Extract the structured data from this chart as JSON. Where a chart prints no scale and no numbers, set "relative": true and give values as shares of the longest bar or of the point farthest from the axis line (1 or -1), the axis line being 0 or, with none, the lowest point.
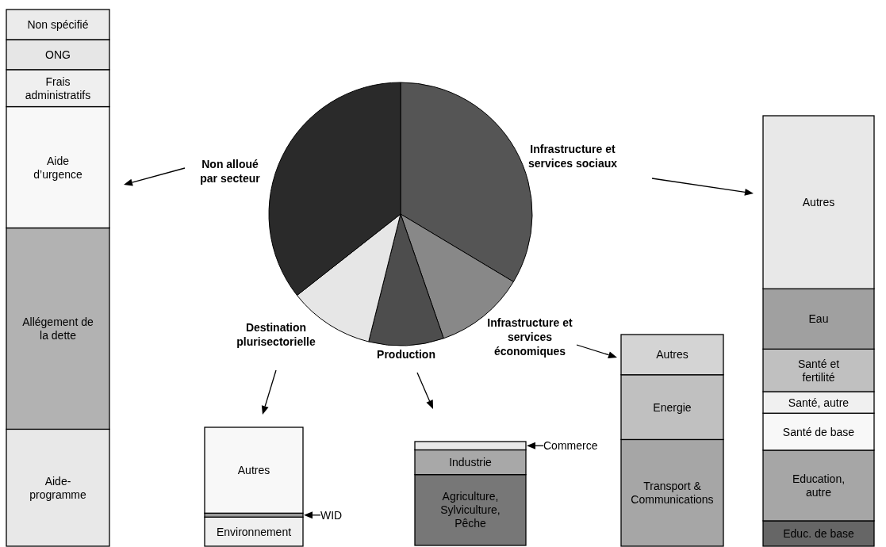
{
  "chart_data": [
    {
      "type": "pie",
      "categories": [
        "Infrastructure et services sociaux",
        "Infrastructure et services économiques",
        "Production",
        "Destination plurisectorielle",
        "Non alloué par secteur"
      ],
      "values": [
        33.6,
        11.1,
        9.2,
        10.5,
        35.6
      ],
      "colors": [
        "#555555",
        "#888888",
        "#4d4d4d",
        "#e6e6e6",
        "#2a2a2a"
      ]
    },
    {
      "type": "bar",
      "stacked": true,
      "relative": true,
      "categories": [
        null
      ],
      "series": [
        {
          "name": "Educ. de base",
          "color": "#666666",
          "values": [
            0.059
          ]
        },
        {
          "name": "Education, autre",
          "color": "#a6a6a6",
          "values": [
            0.164
          ]
        },
        {
          "name": "Santé de base",
          "color": "#f8f8f8",
          "values": [
            0.086
          ]
        },
        {
          "name": "Santé, autre",
          "color": "#f0f0f0",
          "values": [
            0.05
          ]
        },
        {
          "name": "Santé et fertilité",
          "color": "#c0c0c0",
          "values": [
            0.099
          ]
        },
        {
          "name": "Eau",
          "color": "#a0a0a0",
          "values": [
            0.14
          ]
        },
        {
          "name": "Autres",
          "color": "#e8e8e8",
          "values": [
            0.402
          ]
        }
      ]
    },
    {
      "type": "bar",
      "stacked": true,
      "relative": true,
      "categories": [
        null
      ],
      "series": [
        {
          "name": "Transport & Communications",
          "color": "#a6a6a6",
          "values": [
            0.504
          ]
        },
        {
          "name": "Energie",
          "color": "#c0c0c0",
          "values": [
            0.306
          ]
        },
        {
          "name": "Autres",
          "color": "#d4d4d4",
          "values": [
            0.19
          ]
        }
      ]
    },
    {
      "type": "bar",
      "stacked": true,
      "relative": true,
      "categories": [
        null
      ],
      "series": [
        {
          "name": "Agriculture, Sylviculture, Pêche",
          "color": "#777777",
          "values": [
            0.682
          ]
        },
        {
          "name": "Industrie",
          "color": "#a8a8a8",
          "values": [
            0.238
          ]
        },
        {
          "name": "Commerce",
          "color": "#e8e8e8",
          "values": [
            0.08
          ]
        }
      ]
    },
    {
      "type": "bar",
      "stacked": true,
      "relative": true,
      "categories": [
        null
      ],
      "series": [
        {
          "name": "Environnement",
          "color": "#f0f0f0",
          "values": [
            0.245
          ]
        },
        {
          "name": "WID",
          "color": "#999999",
          "values": [
            0.033
          ]
        },
        {
          "name": "Autres",
          "color": "#f8f8f8",
          "values": [
            0.722
          ]
        }
      ]
    },
    {
      "type": "bar",
      "stacked": true,
      "relative": true,
      "categories": [
        null
      ],
      "series": [
        {
          "name": "Aide-programme",
          "color": "#e8e8e8",
          "values": [
            0.218
          ]
        },
        {
          "name": "Allégement de la dette",
          "color": "#b2b2b2",
          "values": [
            0.375
          ]
        },
        {
          "name": "Aide d’urgence",
          "color": "#f8f8f8",
          "values": [
            0.226
          ]
        },
        {
          "name": "Frais administratifs",
          "color": "#efefef",
          "values": [
            0.069
          ]
        },
        {
          "name": "ONG",
          "color": "#e6e6e6",
          "values": [
            0.056
          ]
        },
        {
          "name": "Non spécifié",
          "color": "#ebebeb",
          "values": [
            0.056
          ]
        }
      ]
    }
  ]
}
